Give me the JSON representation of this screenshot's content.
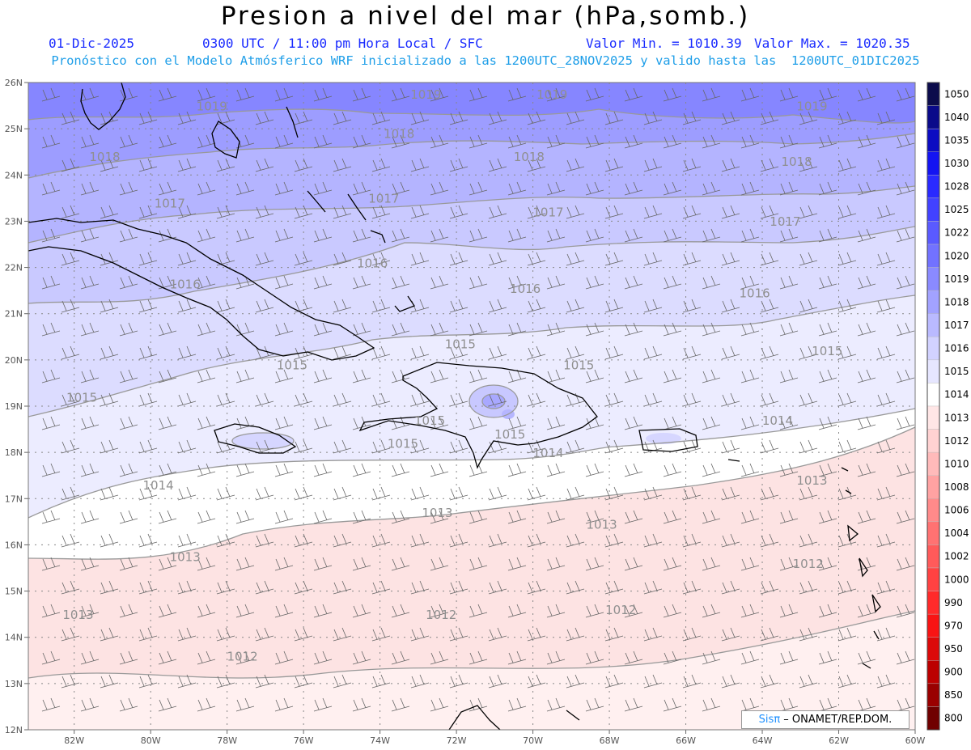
{
  "header": {
    "title": "Presion a nivel del mar (hPa,somb.)",
    "date": "01-Dic-2025",
    "time_info": "0300 UTC / 11:00 pm Hora Local / SFC",
    "min_label": "Valor Min. = 1010.39",
    "max_label": "Valor Max. = 1020.35",
    "model_info": "Pronóstico con el Modelo Atmósferico WRF inicializado a las 1200UTC_28NOV2025 y valido hasta las  1200UTC_01DIC2025"
  },
  "axes": {
    "lon_labels": [
      "82W",
      "80W",
      "78W",
      "76W",
      "74W",
      "72W",
      "70W",
      "68W",
      "66W",
      "64W",
      "62W",
      "60W"
    ],
    "lat_labels": [
      "26N",
      "25N",
      "24N",
      "23N",
      "22N",
      "21N",
      "20N",
      "19N",
      "18N",
      "17N",
      "16N",
      "15N",
      "14N",
      "13N",
      "12N"
    ],
    "lon_range": [
      -83.2,
      -60.0
    ],
    "lat_range": [
      12.0,
      26.0
    ],
    "grid": "dotted"
  },
  "colorbar": {
    "levels": [
      "1050",
      "1040",
      "1035",
      "1030",
      "1028",
      "1025",
      "1022",
      "1020",
      "1019",
      "1018",
      "1017",
      "1016",
      "1015",
      "1014",
      "1013",
      "1012",
      "1010",
      "1008",
      "1006",
      "1004",
      "1002",
      "1000",
      "990",
      "970",
      "950",
      "900",
      "850",
      "800"
    ],
    "colors": [
      "#0c0c4c",
      "#0a0a8a",
      "#0c0cc2",
      "#1414f2",
      "#2a2aff",
      "#4242ff",
      "#5a5aff",
      "#7272ff",
      "#8a8aff",
      "#a2a2ff",
      "#babaff",
      "#d2d2ff",
      "#e6e6ff",
      "#ffffff",
      "#ffe6e6",
      "#ffd2d2",
      "#ffbaba",
      "#ffa2a2",
      "#ff8a8a",
      "#ff7272",
      "#ff5a5a",
      "#ff4242",
      "#ff2a2a",
      "#f81414",
      "#dc0a0a",
      "#bc0000",
      "#9a0000",
      "#700000"
    ]
  },
  "isobars": [
    {
      "value": "1019",
      "lon": -78.4,
      "lat": 25.4
    },
    {
      "value": "1019",
      "lon": -72.8,
      "lat": 25.65
    },
    {
      "value": "1019",
      "lon": -69.5,
      "lat": 25.65
    },
    {
      "value": "1019",
      "lon": -62.7,
      "lat": 25.4
    },
    {
      "value": "1018",
      "lon": -81.2,
      "lat": 24.3
    },
    {
      "value": "1018",
      "lon": -73.5,
      "lat": 24.8
    },
    {
      "value": "1018",
      "lon": -70.1,
      "lat": 24.3
    },
    {
      "value": "1018",
      "lon": -63.1,
      "lat": 24.2
    },
    {
      "value": "1017",
      "lon": -79.5,
      "lat": 23.3
    },
    {
      "value": "1017",
      "lon": -73.9,
      "lat": 23.4
    },
    {
      "value": "1017",
      "lon": -69.6,
      "lat": 23.1
    },
    {
      "value": "1017",
      "lon": -63.4,
      "lat": 22.9
    },
    {
      "value": "1016",
      "lon": -79.1,
      "lat": 21.55
    },
    {
      "value": "1016",
      "lon": -74.2,
      "lat": 22.0
    },
    {
      "value": "1016",
      "lon": -70.2,
      "lat": 21.45
    },
    {
      "value": "1016",
      "lon": -64.2,
      "lat": 21.35
    },
    {
      "value": "1015",
      "lon": -81.8,
      "lat": 19.1
    },
    {
      "value": "1015",
      "lon": -76.3,
      "lat": 19.8
    },
    {
      "value": "1015",
      "lon": -71.9,
      "lat": 20.25
    },
    {
      "value": "1015",
      "lon": -68.8,
      "lat": 19.8
    },
    {
      "value": "1015",
      "lon": -62.3,
      "lat": 20.1
    },
    {
      "value": "1015",
      "lon": -73.4,
      "lat": 18.1
    },
    {
      "value": "1015",
      "lon": -72.7,
      "lat": 18.6
    },
    {
      "value": "1015",
      "lon": -70.6,
      "lat": 18.3
    },
    {
      "value": "1014",
      "lon": -79.8,
      "lat": 17.2
    },
    {
      "value": "1014",
      "lon": -69.6,
      "lat": 17.9
    },
    {
      "value": "1014",
      "lon": -63.6,
      "lat": 18.6
    },
    {
      "value": "1013",
      "lon": -81.9,
      "lat": 14.4
    },
    {
      "value": "1013",
      "lon": -79.1,
      "lat": 15.65
    },
    {
      "value": "1013",
      "lon": -72.5,
      "lat": 16.6
    },
    {
      "value": "1013",
      "lon": -68.2,
      "lat": 16.35
    },
    {
      "value": "1013",
      "lon": -62.7,
      "lat": 17.3
    },
    {
      "value": "1012",
      "lon": -77.6,
      "lat": 13.5
    },
    {
      "value": "1012",
      "lon": -72.4,
      "lat": 14.4
    },
    {
      "value": "1012",
      "lon": -67.7,
      "lat": 14.5
    },
    {
      "value": "1012",
      "lon": -62.8,
      "lat": 15.5
    }
  ],
  "credit": {
    "brand_prefix": "Sis",
    "brand_pi": "π",
    "dash": "–",
    "org": "ONAMET/REP.DOM."
  }
}
